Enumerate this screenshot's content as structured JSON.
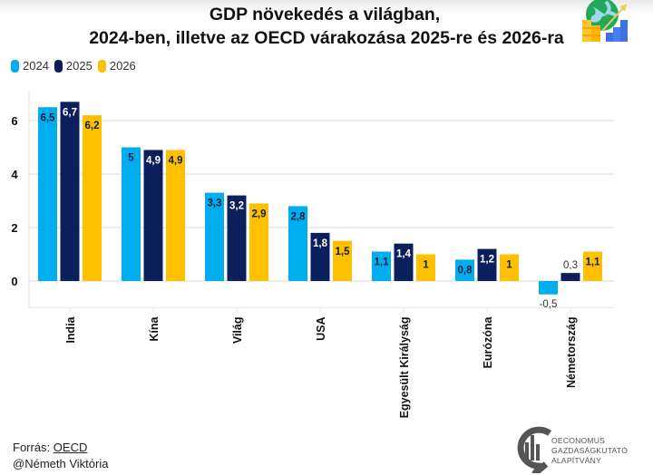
{
  "header": {
    "title_line1": "GDP növekedés a világban,",
    "title_line2": "2024-ben, illetve az OECD várakozása 2025-re és 2026-ra",
    "illustration_icon": "globe-coins-growth-icon"
  },
  "legend": {
    "items": [
      {
        "label": "2024",
        "color": "#00AEEF"
      },
      {
        "label": "2025",
        "color": "#0B1F5C"
      },
      {
        "label": "2026",
        "color": "#FFC000"
      }
    ]
  },
  "chart_data": {
    "type": "bar",
    "title": "GDP növekedés a világban, 2024-ben, illetve az OECD várakozása 2025-re és 2026-ra",
    "xlabel": "",
    "ylabel": "",
    "categories": [
      "India",
      "Kína",
      "Világ",
      "USA",
      "Egyesült Királyság",
      "Eurózóna",
      "Németország"
    ],
    "series": [
      {
        "name": "2024",
        "color": "#00AEEF",
        "values": [
          6.5,
          5,
          3.3,
          2.8,
          1.1,
          0.8,
          -0.5
        ],
        "labels": [
          "6,5",
          "5",
          "3,3",
          "2,8",
          "1,1",
          "0,8",
          "-0,5"
        ]
      },
      {
        "name": "2025",
        "color": "#0B1F5C",
        "values": [
          6.7,
          4.9,
          3.2,
          1.8,
          1.4,
          1.2,
          0.3
        ],
        "labels": [
          "6,7",
          "4,9",
          "3,2",
          "1,8",
          "1,4",
          "1,2",
          "0,3"
        ]
      },
      {
        "name": "2026",
        "color": "#FFC000",
        "values": [
          6.2,
          4.9,
          2.9,
          1.5,
          1,
          1,
          1.1
        ],
        "labels": [
          "6,2",
          "4,9",
          "2,9",
          "1,5",
          "1",
          "1",
          "1,1"
        ]
      }
    ],
    "yticks": [
      0,
      2,
      4,
      6
    ],
    "ytick_labels": [
      "0",
      "2",
      "4",
      "6"
    ],
    "ylim": [
      -1,
      7.1
    ],
    "grid": true,
    "legend_position": "top-left",
    "label_position": "inside-top"
  },
  "footer": {
    "source_prefix": "Forrás: ",
    "source_link": "OECD",
    "author": "@Németh Viktória"
  },
  "logo": {
    "icon": "oeconomus-logo-icon",
    "line1": "OECONOMUS",
    "line2": "GAZDASÁGKUTATÓ",
    "line3": "ALAPÍTVÁNY"
  }
}
